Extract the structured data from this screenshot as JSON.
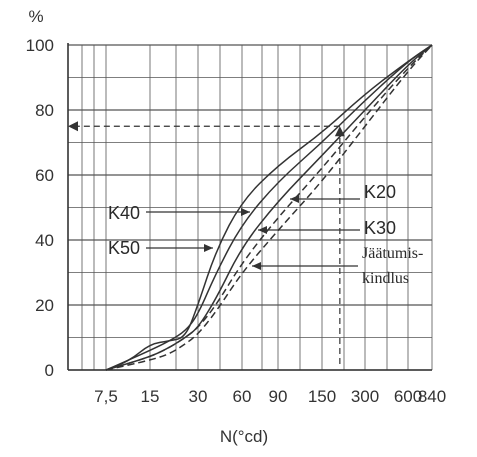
{
  "chart_data": {
    "type": "line",
    "ylabel": "%",
    "xlabel": "N(°cd)",
    "x_ticks": [
      "7,5",
      "15",
      "30",
      "60",
      "90",
      "150",
      "300",
      "600",
      "840"
    ],
    "y_ticks": [
      "0",
      "20",
      "40",
      "60",
      "80",
      "100"
    ],
    "ylim": [
      0,
      100
    ],
    "grid": true,
    "series": [
      {
        "name": "K50",
        "style": "solid",
        "x": [
          7.5,
          11,
          15,
          20,
          25,
          30,
          40,
          60,
          90,
          150,
          300,
          600,
          840
        ],
        "y": [
          0,
          3,
          8,
          9,
          10,
          20,
          37,
          52,
          63,
          73,
          85,
          95,
          100
        ]
      },
      {
        "name": "K40",
        "style": "solid",
        "x": [
          7.5,
          15,
          20,
          25,
          30,
          40,
          60,
          90,
          150,
          300,
          600,
          840
        ],
        "y": [
          0,
          6,
          9,
          12,
          17,
          30,
          45,
          58,
          70,
          83,
          95,
          100
        ]
      },
      {
        "name": "K30",
        "style": "solid",
        "x": [
          7.5,
          15,
          20,
          25,
          30,
          40,
          60,
          90,
          150,
          300,
          600,
          840
        ],
        "y": [
          0,
          4,
          7,
          10,
          13,
          22,
          38,
          52,
          66,
          80,
          94,
          100
        ]
      },
      {
        "name": "K20",
        "style": "dashed",
        "x": [
          7.5,
          15,
          20,
          25,
          30,
          40,
          60,
          90,
          150,
          300,
          600,
          840
        ],
        "y": [
          0,
          4,
          7,
          10,
          13,
          20,
          33,
          47,
          62,
          78,
          93,
          100
        ]
      },
      {
        "name": "Jäätumis-kindlus",
        "style": "dashed",
        "x": [
          7.5,
          15,
          20,
          25,
          30,
          40,
          60,
          90,
          150,
          300,
          600,
          840
        ],
        "y": [
          0,
          3,
          5,
          8,
          11,
          18,
          30,
          43,
          58,
          75,
          92,
          100
        ]
      }
    ],
    "annotations": [
      {
        "text": "K40",
        "series": "K40"
      },
      {
        "text": "K50",
        "series": "K50"
      },
      {
        "text": "K20",
        "series": "K20"
      },
      {
        "text": "K30",
        "series": "K30"
      },
      {
        "text": "Jäätumis-",
        "series": "Jäätumis-kindlus"
      },
      {
        "text": "kindlus",
        "series": "Jäätumis-kindlus"
      }
    ],
    "reference_point": {
      "x": 200,
      "y": 75,
      "style": "dashed"
    }
  },
  "colors": {
    "line": "#333333",
    "grid": "#555555",
    "background": "#ffffff"
  }
}
